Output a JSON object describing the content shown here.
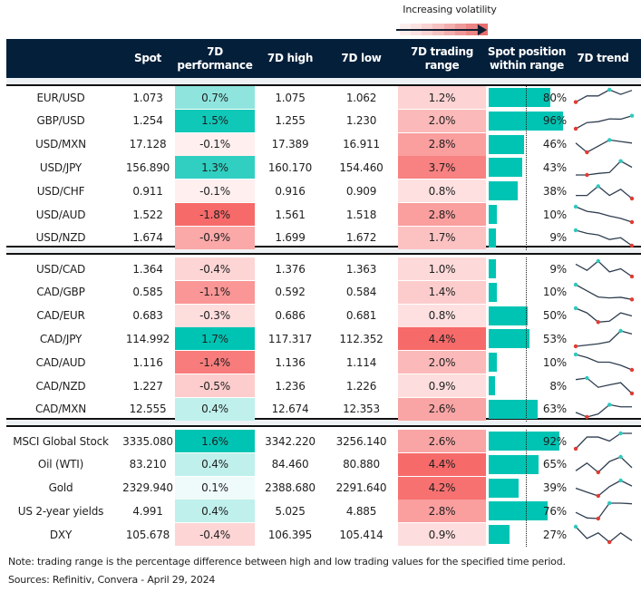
{
  "legend": {
    "label": "Increasing volatility",
    "colors": [
      "#fdeeee",
      "#fbe1e1",
      "#f9d2d2",
      "#f6c1c1",
      "#f3aeae",
      "#ef9a9a",
      "#ec8585",
      "#e86f6f"
    ]
  },
  "header": {
    "columns": [
      "",
      "Spot",
      "7D performance",
      "7D high",
      "7D low",
      "7D trading range",
      "Spot position within range",
      "7D trend"
    ]
  },
  "colors": {
    "header_bg": "#041f3a",
    "bar": "#00c4b3",
    "spark_line": "#2f3e50",
    "spark_high": "#2ec9bd",
    "spark_low": "#e23b32"
  },
  "groups": [
    {
      "rows": [
        {
          "name": "EUR/USD",
          "spot": "1.073",
          "perf": "0.7%",
          "perf_value": 0.7,
          "high": "1.075",
          "low": "1.062",
          "range": "1.2%",
          "range_value": 1.2,
          "position": "80%",
          "position_value": 80,
          "trend": [
            1,
            3,
            3,
            5,
            3.5,
            4.8
          ],
          "trend_high": 3,
          "trend_low": 0
        },
        {
          "name": "GBP/USD",
          "spot": "1.254",
          "perf": "1.5%",
          "perf_value": 1.5,
          "high": "1.255",
          "low": "1.230",
          "range": "2.0%",
          "range_value": 2.0,
          "position": "96%",
          "position_value": 96,
          "trend": [
            0,
            2,
            2.3,
            3.2,
            3.1,
            4.2
          ],
          "trend_high": 5,
          "trend_low": 0
        },
        {
          "name": "USD/MXN",
          "spot": "17.128",
          "perf": "-0.1%",
          "perf_value": -0.1,
          "high": "17.389",
          "low": "16.911",
          "range": "2.8%",
          "range_value": 2.8,
          "position": "46%",
          "position_value": 46,
          "trend": [
            3,
            0,
            2,
            4,
            3.5,
            3
          ],
          "trend_high": 3,
          "trend_low": 1
        },
        {
          "name": "USD/JPY",
          "spot": "156.890",
          "perf": "1.3%",
          "perf_value": 1.3,
          "high": "160.170",
          "low": "154.460",
          "range": "3.7%",
          "range_value": 3.7,
          "position": "43%",
          "position_value": 43,
          "trend": [
            0,
            0,
            0.5,
            0.8,
            4.5,
            2.5
          ],
          "trend_high": 4,
          "trend_low": 1
        },
        {
          "name": "USD/CHF",
          "spot": "0.911",
          "perf": "-0.1%",
          "perf_value": -0.1,
          "high": "0.916",
          "low": "0.909",
          "range": "0.8%",
          "range_value": 0.8,
          "position": "38%",
          "position_value": 38,
          "trend": [
            1,
            1,
            4,
            1,
            3,
            0
          ],
          "trend_high": 2,
          "trend_low": 5
        },
        {
          "name": "USD/AUD",
          "spot": "1.522",
          "perf": "-1.8%",
          "perf_value": -1.8,
          "high": "1.561",
          "low": "1.518",
          "range": "2.8%",
          "range_value": 2.8,
          "position": "10%",
          "position_value": 10,
          "trend": [
            5,
            3.5,
            3,
            2,
            1.2,
            0
          ],
          "trend_high": 0,
          "trend_low": 5
        },
        {
          "name": "USD/NZD",
          "spot": "1.674",
          "perf": "-0.9%",
          "perf_value": -0.9,
          "high": "1.699",
          "low": "1.672",
          "range": "1.7%",
          "range_value": 1.7,
          "position": "9%",
          "position_value": 9,
          "trend": [
            5,
            4,
            3.5,
            2,
            2.6,
            0
          ],
          "trend_high": 0,
          "trend_low": 5
        }
      ]
    },
    {
      "rows": [
        {
          "name": "USD/CAD",
          "spot": "1.364",
          "perf": "-0.4%",
          "perf_value": -0.4,
          "high": "1.376",
          "low": "1.363",
          "range": "1.0%",
          "range_value": 1.0,
          "position": "9%",
          "position_value": 9,
          "trend": [
            4,
            2,
            5,
            1.5,
            2.5,
            0
          ],
          "trend_high": 2,
          "trend_low": 5
        },
        {
          "name": "CAD/GBP",
          "spot": "0.585",
          "perf": "-1.1%",
          "perf_value": -1.1,
          "high": "0.592",
          "low": "0.584",
          "range": "1.4%",
          "range_value": 1.4,
          "position": "10%",
          "position_value": 10,
          "trend": [
            5,
            3,
            1,
            0.7,
            0.9,
            0.2
          ],
          "trend_high": 0,
          "trend_low": 5
        },
        {
          "name": "CAD/EUR",
          "spot": "0.683",
          "perf": "-0.3%",
          "perf_value": -0.3,
          "high": "0.686",
          "low": "0.681",
          "range": "0.8%",
          "range_value": 0.8,
          "position": "50%",
          "position_value": 50,
          "trend": [
            5,
            3.5,
            0.5,
            0.8,
            3.5,
            2.5
          ],
          "trend_high": 0,
          "trend_low": 2
        },
        {
          "name": "CAD/JPY",
          "spot": "114.992",
          "perf": "1.7%",
          "perf_value": 1.7,
          "high": "117.317",
          "low": "112.352",
          "range": "4.4%",
          "range_value": 4.4,
          "position": "53%",
          "position_value": 53,
          "trend": [
            0,
            0.4,
            0.8,
            1.5,
            5,
            4
          ],
          "trend_high": 4,
          "trend_low": 0
        },
        {
          "name": "CAD/AUD",
          "spot": "1.116",
          "perf": "-1.4%",
          "perf_value": -1.4,
          "high": "1.136",
          "low": "1.114",
          "range": "2.0%",
          "range_value": 2.0,
          "position": "10%",
          "position_value": 10,
          "trend": [
            5,
            4,
            2.5,
            2.5,
            1.5,
            0
          ],
          "trend_high": 0,
          "trend_low": 5
        },
        {
          "name": "CAD/NZD",
          "spot": "1.227",
          "perf": "-0.5%",
          "perf_value": -0.5,
          "high": "1.236",
          "low": "1.226",
          "range": "0.9%",
          "range_value": 0.9,
          "position": "8%",
          "position_value": 8,
          "trend": [
            4.5,
            5,
            2,
            2.8,
            3.5,
            0
          ],
          "trend_high": 1,
          "trend_low": 5
        },
        {
          "name": "CAD/MXN",
          "spot": "12.555",
          "perf": "0.4%",
          "perf_value": 0.4,
          "high": "12.674",
          "low": "12.353",
          "range": "2.6%",
          "range_value": 2.6,
          "position": "63%",
          "position_value": 63,
          "trend": [
            1.5,
            0,
            1,
            4,
            3.3,
            3.3
          ],
          "trend_high": 3,
          "trend_low": 1
        }
      ]
    },
    {
      "rows": [
        {
          "name": "MSCI Global Stock",
          "spot": "3335.080",
          "perf": "1.6%",
          "perf_value": 1.6,
          "high": "3342.220",
          "low": "3256.140",
          "range": "2.6%",
          "range_value": 2.6,
          "position": "92%",
          "position_value": 92,
          "trend": [
            0,
            3.8,
            3.8,
            2.5,
            5,
            5
          ],
          "trend_high": 4,
          "trend_low": 0
        },
        {
          "name": "Oil (WTI)",
          "spot": "83.210",
          "perf": "0.4%",
          "perf_value": 0.4,
          "high": "84.460",
          "low": "80.880",
          "range": "4.4%",
          "range_value": 4.4,
          "position": "65%",
          "position_value": 65,
          "trend": [
            0.5,
            3,
            0,
            3.5,
            5,
            1.5
          ],
          "trend_high": 4,
          "trend_low": 2
        },
        {
          "name": "Gold",
          "spot": "2329.940",
          "perf": "0.1%",
          "perf_value": 0.1,
          "high": "2388.680",
          "low": "2291.640",
          "range": "4.2%",
          "range_value": 4.2,
          "position": "39%",
          "position_value": 39,
          "trend": [
            2.5,
            1.2,
            0,
            3,
            5,
            3.2
          ],
          "trend_high": 4,
          "trend_low": 2
        },
        {
          "name": "US 2-year yields",
          "spot": "4.991",
          "perf": "0.4%",
          "perf_value": 0.4,
          "high": "5.025",
          "low": "4.885",
          "range": "2.8%",
          "range_value": 2.8,
          "position": "76%",
          "position_value": 76,
          "trend": [
            2,
            0.2,
            0,
            5,
            5,
            4.8
          ],
          "trend_high": 3,
          "trend_low": 2
        },
        {
          "name": "DXY",
          "spot": "105.678",
          "perf": "-0.4%",
          "perf_value": -0.4,
          "high": "106.395",
          "low": "105.414",
          "range": "0.9%",
          "range_value": 0.9,
          "position": "27%",
          "position_value": 27,
          "trend": [
            5,
            1.2,
            3,
            0,
            3,
            0.5
          ],
          "trend_high": 0,
          "trend_low": 3
        }
      ]
    }
  ],
  "footer": {
    "note": "Note: trading range is the percentage difference between high and low trading values for the specified time period.",
    "sources": "Sources: Refinitiv, Convera - April 29, 2024"
  }
}
